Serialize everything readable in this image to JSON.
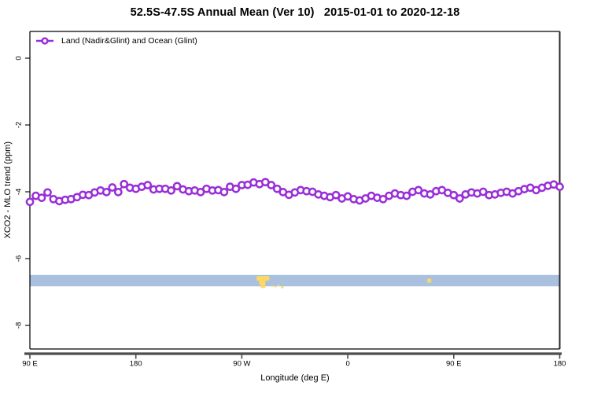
{
  "title": "52.5S-47.5S Annual Mean (Ver 10)   2015-01-01 to 2020-12-18",
  "legend": {
    "label": "Land (Nadir&Glint) and Ocean (Glint)",
    "marker_color": "#9A2ED8"
  },
  "chart_data": {
    "type": "line",
    "title": "52.5S-47.5S Annual Mean (Ver 10)   2015-01-01 to 2020-12-18",
    "xlabel": "Longitude (deg E)",
    "ylabel": "XCO2 - MLO trend (ppm)",
    "x_axis": {
      "tick_deg": [
        90,
        180,
        270,
        360,
        450,
        540
      ],
      "tick_labels": [
        "90 E",
        "180",
        "90 W",
        "0",
        "90 E",
        "180"
      ],
      "range_deg": [
        90,
        540
      ],
      "wraps_globe": true
    },
    "y_axis": {
      "ticks": [
        0,
        -2,
        -4,
        -6,
        -8
      ],
      "tick_labels": [
        "0",
        "-2",
        "-4",
        "-6",
        "-8"
      ],
      "ylim": [
        -8.85,
        0.8
      ]
    },
    "grid": "off",
    "legend_position": "top-left-inside",
    "series": [
      {
        "name": "Land (Nadir&Glint) and Ocean (Glint)",
        "color": "#9A2ED8",
        "marker": "open-circle",
        "x_start_deg": 90,
        "x_step_deg": 5,
        "values": [
          -4.3,
          -4.12,
          -4.18,
          -4.02,
          -4.22,
          -4.28,
          -4.24,
          -4.22,
          -4.16,
          -4.09,
          -4.1,
          -4.02,
          -3.96,
          -4.01,
          -3.87,
          -4.01,
          -3.77,
          -3.88,
          -3.91,
          -3.85,
          -3.8,
          -3.93,
          -3.91,
          -3.91,
          -3.96,
          -3.83,
          -3.93,
          -3.98,
          -3.96,
          -4.01,
          -3.91,
          -3.96,
          -3.95,
          -4.01,
          -3.85,
          -3.91,
          -3.8,
          -3.79,
          -3.72,
          -3.77,
          -3.71,
          -3.8,
          -3.91,
          -4.01,
          -4.09,
          -4.02,
          -3.95,
          -3.98,
          -4.0,
          -4.08,
          -4.12,
          -4.16,
          -4.1,
          -4.2,
          -4.14,
          -4.22,
          -4.26,
          -4.2,
          -4.12,
          -4.18,
          -4.22,
          -4.12,
          -4.05,
          -4.1,
          -4.12,
          -4.0,
          -3.95,
          -4.05,
          -4.08,
          -3.98,
          -3.95,
          -4.03,
          -4.1,
          -4.2,
          -4.08,
          -4.02,
          -4.05,
          -4.0,
          -4.1,
          -4.08,
          -4.03,
          -4.0,
          -4.05,
          -3.98,
          -3.92,
          -3.88,
          -3.95,
          -3.88,
          -3.82,
          -3.78,
          -3.85
        ]
      }
    ],
    "band": {
      "description": "horizontal shaded band across full longitude range",
      "color": "#A9C1DF",
      "y_top": -6.49,
      "y_bottom": -6.83
    },
    "yellow_marks": {
      "color": "#FFD763",
      "patches": [
        {
          "x_deg": 282.6,
          "y_top": -6.52,
          "w_deg": 10.7,
          "h": 0.14
        },
        {
          "x_deg": 284.6,
          "y_top": -6.64,
          "w_deg": 5.4,
          "h": 0.14
        },
        {
          "x_deg": 286.0,
          "y_top": -6.76,
          "w_deg": 4.0,
          "h": 0.12
        },
        {
          "x_deg": 295.3,
          "y_top": -6.8,
          "w_deg": 1.4,
          "h": 0.05
        },
        {
          "x_deg": 297.9,
          "y_top": -6.82,
          "w_deg": 1.4,
          "h": 0.05
        },
        {
          "x_deg": 300.6,
          "y_top": -6.78,
          "w_deg": 1.4,
          "h": 0.05
        },
        {
          "x_deg": 303.3,
          "y_top": -6.82,
          "w_deg": 2.0,
          "h": 0.07
        },
        {
          "x_deg": 427.6,
          "y_top": -6.6,
          "w_deg": 3.3,
          "h": 0.12
        }
      ]
    },
    "colors": {
      "series": "#9A2ED8",
      "band": "#A9C1DF",
      "yellow": "#FFD763",
      "frame": "#000000",
      "axis_line": "#4d4d4d"
    }
  }
}
